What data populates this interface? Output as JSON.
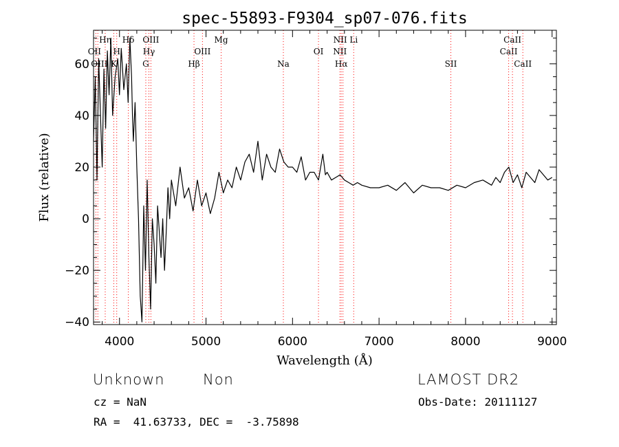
{
  "chart_data": {
    "type": "line",
    "title": "spec-55893-F9304_sp07-076.fits",
    "xlabel": "Wavelength (Å)",
    "ylabel": "Flux (relative)",
    "xlim": [
      3700,
      9050
    ],
    "ylim": [
      -41,
      73
    ],
    "x_ticks": [
      4000,
      5000,
      6000,
      7000,
      8000,
      9000
    ],
    "y_ticks": [
      -40,
      -20,
      0,
      20,
      40,
      60
    ],
    "grid": false,
    "line_color": "#000000",
    "marker_color": "#ff0000",
    "series": [
      {
        "x": [
          3700,
          3720,
          3740,
          3760,
          3780,
          3800,
          3820,
          3840,
          3860,
          3880,
          3900,
          3920,
          3950,
          3980,
          4000,
          4020,
          4050,
          4080,
          4100,
          4120,
          4140,
          4150,
          4160,
          4180,
          4200,
          4220,
          4240,
          4260,
          4280,
          4300,
          4320,
          4340,
          4360,
          4380,
          4400,
          4420,
          4440,
          4460,
          4480,
          4500,
          4520,
          4540,
          4560,
          4580,
          4600,
          4650,
          4700,
          4750,
          4800,
          4850,
          4900,
          4950,
          5000,
          5050,
          5100,
          5150,
          5200,
          5250,
          5300,
          5350,
          5400,
          5450,
          5500,
          5550,
          5600,
          5650,
          5700,
          5750,
          5800,
          5850,
          5900,
          5950,
          6000,
          6050,
          6100,
          6150,
          6200,
          6250,
          6300,
          6350,
          6380,
          6400,
          6450,
          6500,
          6550,
          6600,
          6650,
          6700,
          6750,
          6800,
          6900,
          7000,
          7100,
          7200,
          7300,
          7400,
          7500,
          7600,
          7700,
          7800,
          7900,
          8000,
          8100,
          8200,
          8300,
          8350,
          8400,
          8450,
          8500,
          8550,
          8600,
          8650,
          8700,
          8750,
          8800,
          8850,
          8900,
          8950,
          9000
        ],
        "y": [
          30,
          55,
          15,
          62,
          40,
          20,
          58,
          35,
          65,
          48,
          70,
          40,
          55,
          62,
          48,
          66,
          50,
          60,
          45,
          70,
          55,
          40,
          30,
          45,
          20,
          0,
          -30,
          -40,
          5,
          -20,
          15,
          -15,
          -35,
          0,
          -10,
          -25,
          5,
          -5,
          -15,
          0,
          -20,
          -5,
          12,
          0,
          15,
          5,
          20,
          8,
          12,
          3,
          15,
          5,
          10,
          2,
          8,
          18,
          10,
          15,
          12,
          20,
          15,
          22,
          25,
          18,
          30,
          15,
          25,
          20,
          18,
          27,
          22,
          20,
          20,
          18,
          24,
          15,
          18,
          18,
          15,
          25,
          17,
          18,
          15,
          16,
          17,
          15,
          14,
          13,
          14,
          13,
          12,
          12,
          13,
          11,
          14,
          10,
          13,
          12,
          12,
          11,
          13,
          12,
          14,
          15,
          13,
          16,
          14,
          18,
          20,
          14,
          17,
          12,
          18,
          16,
          14,
          19,
          17,
          15,
          16
        ]
      }
    ],
    "line_markers": [
      {
        "x": 3727,
        "label": "OII",
        "row": 2,
        "dx": -2
      },
      {
        "x": 3750,
        "label": "OIII",
        "row": 3,
        "dx": 2
      },
      {
        "x": 3835,
        "label": "Hη",
        "row": 1,
        "dx": 0
      },
      {
        "x": 3934,
        "label": "K",
        "row": 3,
        "dx": 0
      },
      {
        "x": 3968,
        "label": "H",
        "row": 2,
        "dx": 0
      },
      {
        "x": 4102,
        "label": "Hδ",
        "row": 1,
        "dx": 0
      },
      {
        "x": 4304,
        "label": "G",
        "row": 3,
        "dx": 0
      },
      {
        "x": 4340,
        "label": "Hγ",
        "row": 2,
        "dx": 0
      },
      {
        "x": 4363,
        "label": "OIII",
        "row": 1,
        "dx": 0
      },
      {
        "x": 4861,
        "label": "Hβ",
        "row": 3,
        "dx": 0
      },
      {
        "x": 4959,
        "label": "OIII",
        "row": 2,
        "dx": 0
      },
      {
        "x": 5175,
        "label": "Mg",
        "row": 1,
        "dx": 0
      },
      {
        "x": 5894,
        "label": "Na",
        "row": 3,
        "dx": 0
      },
      {
        "x": 6300,
        "label": "OI",
        "row": 2,
        "dx": 0
      },
      {
        "x": 6548,
        "label": "NII",
        "row": 2,
        "dx": 0
      },
      {
        "x": 6563,
        "label": "Hα",
        "row": 3,
        "dx": 0
      },
      {
        "x": 6583,
        "label": "NII",
        "row": 1,
        "dx": -4
      },
      {
        "x": 6707,
        "label": "Li",
        "row": 1,
        "dx": 0
      },
      {
        "x": 7830,
        "label": "SII",
        "row": 3,
        "dx": 0
      },
      {
        "x": 8498,
        "label": "CaII",
        "row": 2,
        "dx": 0
      },
      {
        "x": 8542,
        "label": "CaII",
        "row": 1,
        "dx": 0
      },
      {
        "x": 8662,
        "label": "CaII",
        "row": 3,
        "dx": 0
      }
    ]
  },
  "info": {
    "class": "Unknown",
    "subclass": "Non",
    "survey": "LAMOST DR2",
    "cz": "cz = NaN",
    "obs_date": "Obs-Date: 20111127",
    "coords": "RA =  41.63733, DEC =  -3.75898"
  }
}
